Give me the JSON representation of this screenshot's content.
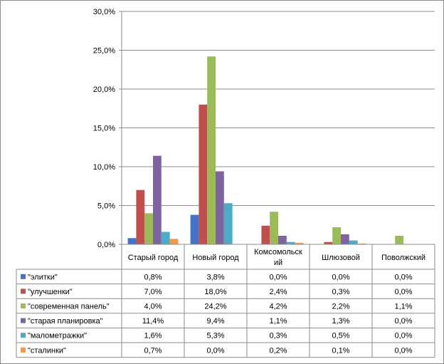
{
  "chart_data": {
    "type": "bar",
    "categories": [
      "Старый город",
      "Новый город",
      "Комсомольский",
      "Шлюзовой",
      "Поволжский"
    ],
    "category_labels": [
      [
        "Старый город"
      ],
      [
        "Новый город"
      ],
      [
        "Комсомольск",
        "ий"
      ],
      [
        "Шлюзовой"
      ],
      [
        "Поволжский"
      ]
    ],
    "series": [
      {
        "name": "\"элитки\"",
        "color": "#4472C4",
        "values": [
          0.8,
          3.8,
          0.0,
          0.0,
          0.0
        ],
        "labels": [
          "0,8%",
          "3,8%",
          "0,0%",
          "0,0%",
          "0,0%"
        ]
      },
      {
        "name": "\"улучшенки\"",
        "color": "#C0504D",
        "values": [
          7.0,
          18.0,
          2.4,
          0.3,
          0.0
        ],
        "labels": [
          "7,0%",
          "18,0%",
          "2,4%",
          "0,3%",
          "0,0%"
        ]
      },
      {
        "name": "\"современная панель\"",
        "color": "#9BBB59",
        "values": [
          4.0,
          24.2,
          4.2,
          2.2,
          1.1
        ],
        "labels": [
          "4,0%",
          "24,2%",
          "4,2%",
          "2,2%",
          "1,1%"
        ]
      },
      {
        "name": "\"старая планировка\"",
        "color": "#8064A2",
        "values": [
          11.4,
          9.4,
          1.1,
          1.3,
          0.0
        ],
        "labels": [
          "11,4%",
          "9,4%",
          "1,1%",
          "1,3%",
          "0,0%"
        ]
      },
      {
        "name": "\"малометражки\"",
        "color": "#4BACC6",
        "values": [
          1.6,
          5.3,
          0.3,
          0.5,
          0.0
        ],
        "labels": [
          "1,6%",
          "5,3%",
          "0,3%",
          "0,5%",
          "0,0%"
        ]
      },
      {
        "name": "\"сталинки\"",
        "color": "#F79646",
        "values": [
          0.7,
          0.0,
          0.2,
          0.1,
          0.0
        ],
        "labels": [
          "0,7%",
          "0,0%",
          "0,2%",
          "0,1%",
          "0,0%"
        ]
      }
    ],
    "y_ticks": [
      "0,0%",
      "5,0%",
      "10,0%",
      "15,0%",
      "20,0%",
      "25,0%",
      "30,0%"
    ],
    "ylim": [
      0,
      30
    ],
    "y_step": 5,
    "grid": true,
    "legend": "data-table"
  }
}
